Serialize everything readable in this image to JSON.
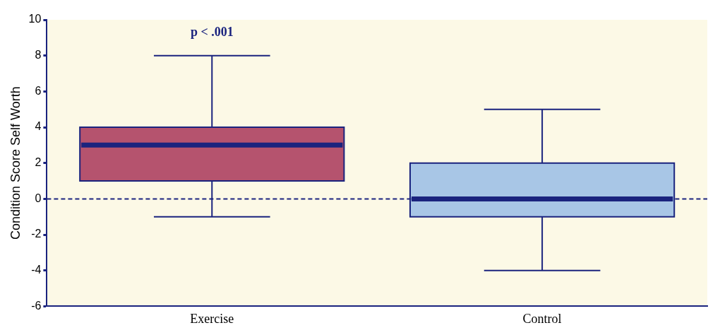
{
  "chart_data": {
    "type": "box",
    "ylabel": "Condition Score Self Worth",
    "categories": [
      "Exercise",
      "Control"
    ],
    "boxes": [
      {
        "low": -1,
        "q1": 1,
        "median": 3,
        "q3": 4,
        "high": 8
      },
      {
        "low": -4,
        "q1": -1,
        "median": 0,
        "q3": 2,
        "high": 5
      }
    ],
    "colors": [
      "#b5536e",
      "#a8c6e6"
    ],
    "ylim": [
      -6,
      10
    ],
    "yticks": [
      -6,
      -4,
      -2,
      0,
      2,
      4,
      6,
      8,
      10
    ],
    "ref_lines": [
      {
        "axis": "y",
        "value": 0,
        "line_style": "dashed",
        "color": "#1a237e"
      }
    ],
    "annotations": [
      "p < .001"
    ]
  }
}
